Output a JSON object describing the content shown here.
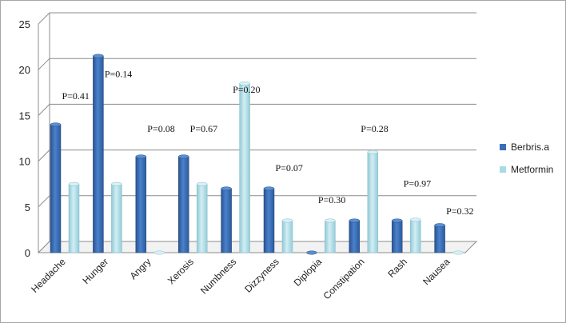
{
  "chart_data": {
    "type": "bar",
    "categories": [
      "Headache",
      "Hunger",
      "Angry",
      "Xerosis",
      "Numbness",
      "Dizzyness",
      "Diplopia",
      "Constipation",
      "Rash",
      "Nausea"
    ],
    "series": [
      {
        "name": "Berbris.a",
        "values": [
          14,
          21.5,
          10.5,
          10.5,
          7,
          7,
          0,
          3.5,
          3.5,
          3
        ]
      },
      {
        "name": "Metformin",
        "values": [
          7.5,
          7.5,
          0,
          7.5,
          18.5,
          3.5,
          3.5,
          11,
          3.6,
          0
        ]
      }
    ],
    "annotations": [
      "P=0.41",
      "P=0.14",
      "P=0.08",
      "P=0.67",
      "P=0.20",
      "P=0.07",
      "P=0.30",
      "P=0.28",
      "P=0.97",
      "P=0.32"
    ],
    "annotation_values": [
      16.8,
      19.2,
      13.2,
      13.2,
      17.5,
      8.9,
      5.4,
      13.2,
      7.2,
      4.2
    ],
    "ylim": [
      0,
      25
    ],
    "yticks": [
      0,
      5,
      10,
      15,
      20,
      25
    ],
    "grid": true,
    "legend_position": "right",
    "colors": {
      "Berbris.a": "#3a6fb8",
      "Metformin": "#a9dbe5"
    }
  }
}
